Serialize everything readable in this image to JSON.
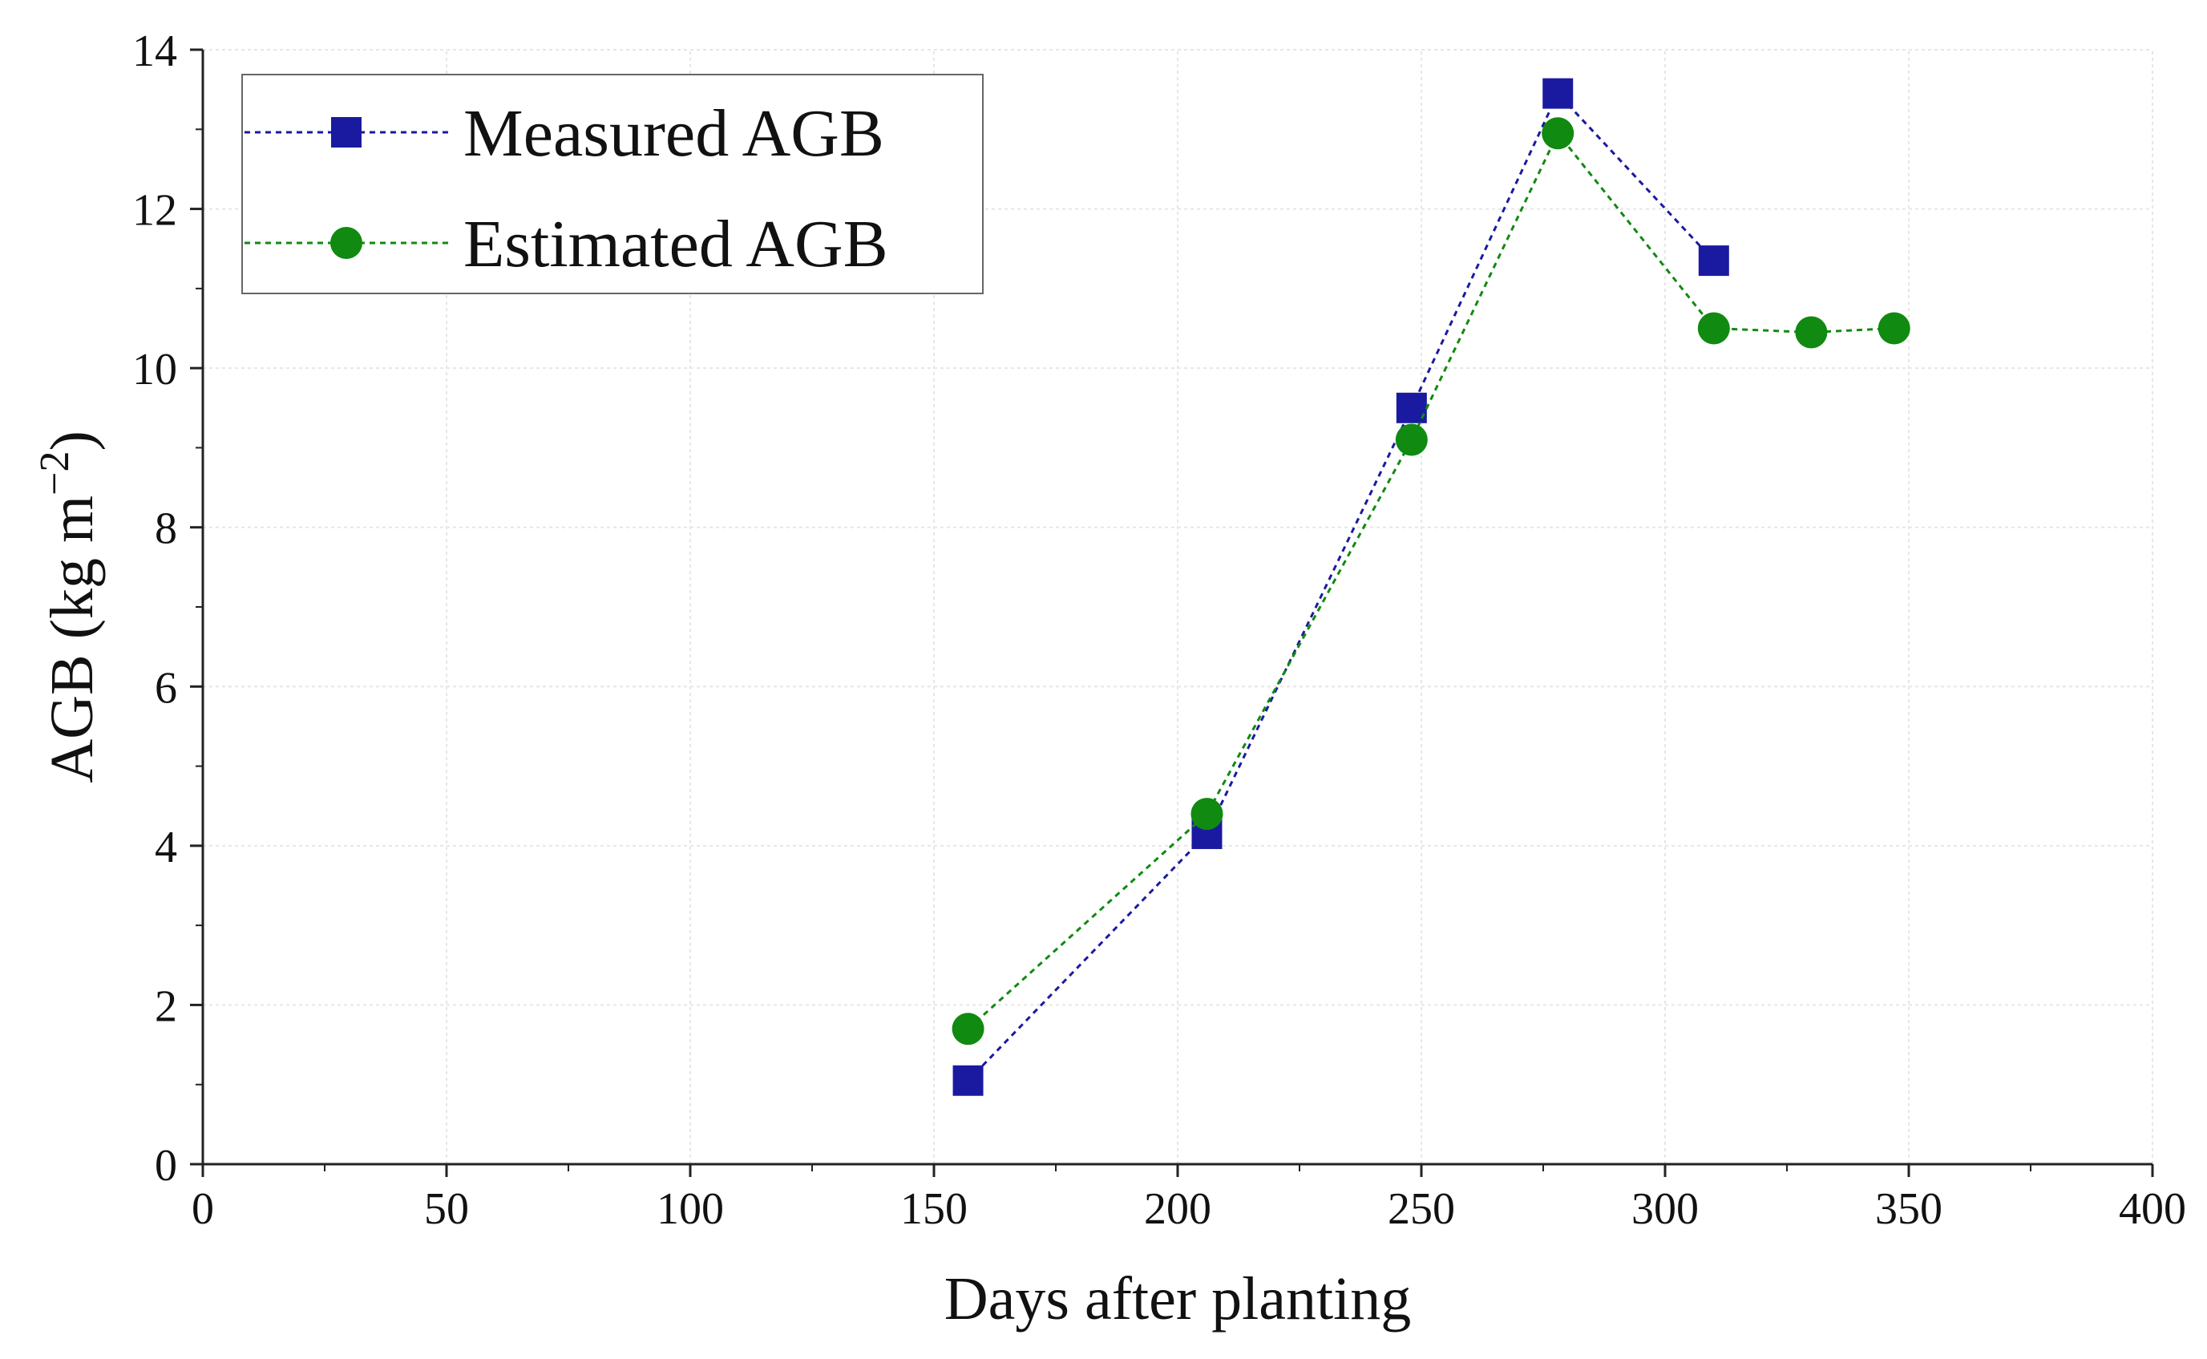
{
  "chart_data": {
    "type": "line",
    "title": "",
    "xlabel": "Days after planting",
    "ylabel_main": "AGB (kg m",
    "ylabel_sup": "−2",
    "ylabel_close": ")",
    "xlim": [
      0,
      400
    ],
    "ylim": [
      0,
      14
    ],
    "xticks": [
      0,
      50,
      100,
      150,
      200,
      250,
      300,
      350,
      400
    ],
    "yticks": [
      0,
      2,
      4,
      6,
      8,
      10,
      12,
      14
    ],
    "grid": true,
    "legend_position": "top-left",
    "series": [
      {
        "name": "Measured AGB",
        "marker": "square",
        "color": "#1a1aa0",
        "line_style": "dotted",
        "x": [
          157,
          206,
          248,
          278,
          310
        ],
        "y": [
          1.05,
          4.15,
          9.5,
          13.45,
          11.35
        ]
      },
      {
        "name": "Estimated AGB",
        "marker": "circle",
        "color": "#108a10",
        "line_style": "dotted",
        "x": [
          157,
          206,
          248,
          278,
          310,
          330,
          347
        ],
        "y": [
          1.7,
          4.4,
          9.1,
          12.95,
          10.5,
          10.45,
          10.5
        ]
      }
    ]
  }
}
